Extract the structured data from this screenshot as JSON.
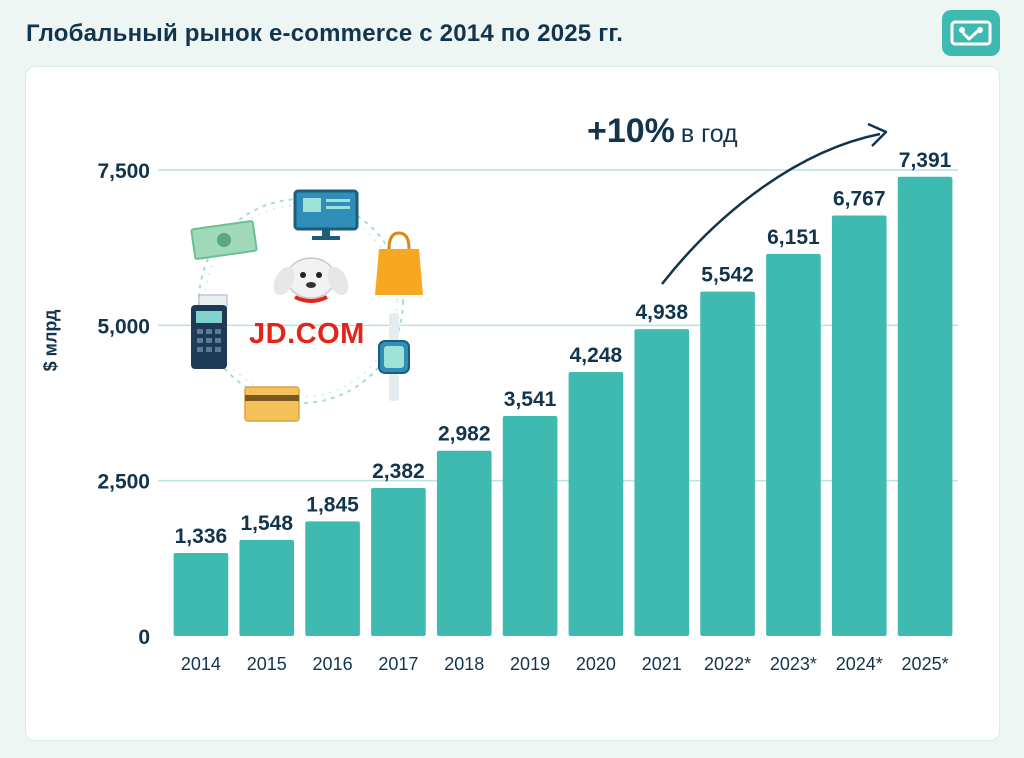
{
  "header": {
    "title": "Глобальный рынок e-commerce с 2014 по 2025 гг."
  },
  "logo": {
    "icon": "brand-logo-icon",
    "color": "#3fbab0"
  },
  "illustration": {
    "brand_text": "JD.COM",
    "icons": [
      "cash-icon",
      "monitor-icon",
      "shopping-bag-icon",
      "dog-mascot-icon",
      "payment-terminal-icon",
      "smartwatch-icon",
      "credit-card-icon"
    ]
  },
  "annotation": {
    "growth_pct": "+10%",
    "growth_text": "в год"
  },
  "chart_data": {
    "type": "bar",
    "ylabel": "$ млрд",
    "xlabel": "",
    "ylim": [
      0,
      7500
    ],
    "yticks": [
      0,
      2500,
      5000,
      7500
    ],
    "ytick_labels": [
      "0",
      "2,500",
      "5,000",
      "7,500"
    ],
    "categories": [
      "2014",
      "2015",
      "2016",
      "2017",
      "2018",
      "2019",
      "2020",
      "2021",
      "2022*",
      "2023*",
      "2024*",
      "2025*"
    ],
    "values": [
      1336,
      1548,
      1845,
      2382,
      2982,
      3541,
      4248,
      4938,
      5542,
      6151,
      6767,
      7391
    ],
    "value_labels": [
      "1,336",
      "1,548",
      "1,845",
      "2,382",
      "2,982",
      "3,541",
      "4,248",
      "4,938",
      "5,542",
      "6,151",
      "6,767",
      "7,391"
    ],
    "grid": true,
    "bar_color": "#3fbab0",
    "grid_color": "#b9e2dd",
    "text_color": "#12344d"
  }
}
